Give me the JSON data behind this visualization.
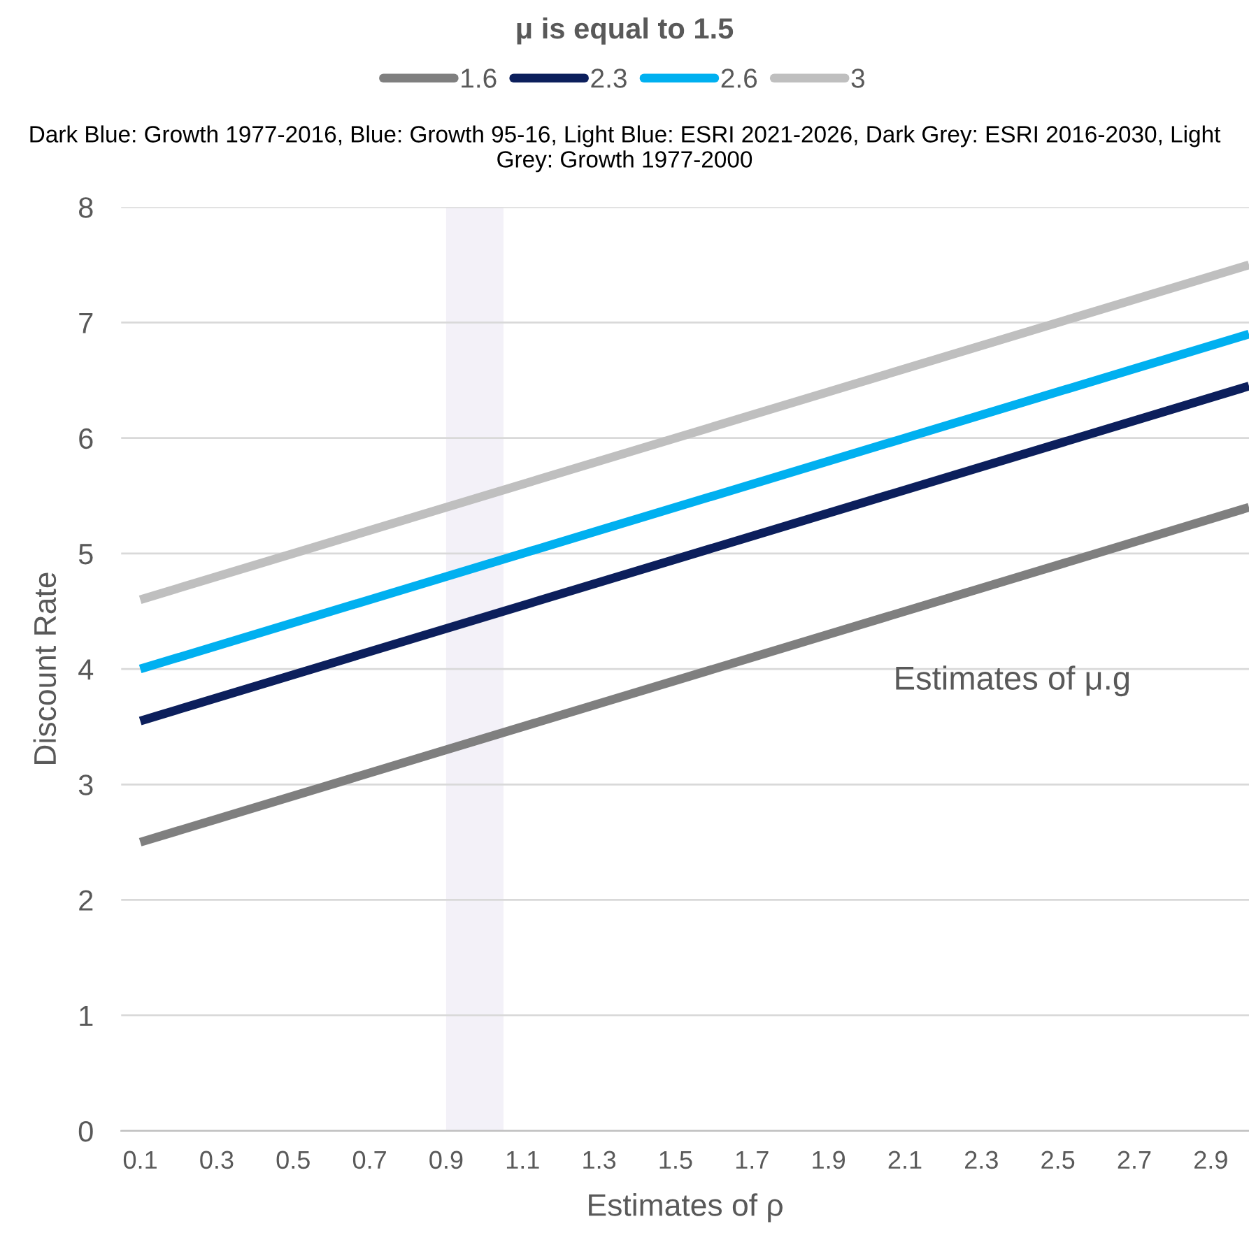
{
  "chart_data": {
    "type": "line",
    "title": "μ is equal to 1.5",
    "subtitle": "Dark Blue: Growth 1977-2016, Blue: Growth 95-16, Light Blue: ESRI 2021-2026, Dark Grey: ESRI 2016-2030, Light Grey: Growth 1977-2000",
    "xlabel": "Estimates of ρ",
    "ylabel": "Discount Rate",
    "annotations": [
      "Estimates of μ.g"
    ],
    "x": [
      0.1,
      3.0
    ],
    "series": [
      {
        "name": "1.6",
        "color": "#7f7f7f",
        "values": [
          2.5,
          5.4
        ]
      },
      {
        "name": "2.3",
        "color": "#0c1f5c",
        "values": [
          3.55,
          6.45
        ]
      },
      {
        "name": "2.6",
        "color": "#00b0f0",
        "values": [
          4.0,
          6.9
        ]
      },
      {
        "name": "3",
        "color": "#bfbfbf",
        "values": [
          4.6,
          7.5
        ]
      }
    ],
    "bands": [
      {
        "axis": "x",
        "from": 0.9,
        "to": 1.05,
        "color": "#f3f1f8"
      }
    ],
    "xlim": [
      0.05,
      3.0
    ],
    "xticks": [
      0.1,
      0.3,
      0.5,
      0.7,
      0.9,
      1.1,
      1.3,
      1.5,
      1.7,
      1.9,
      2.1,
      2.3,
      2.5,
      2.7,
      2.9
    ],
    "ylim": [
      0,
      8
    ],
    "yticks": [
      0,
      1,
      2,
      3,
      4,
      5,
      6,
      7,
      8
    ],
    "grid": "y",
    "legend": "top",
    "marker": "none",
    "line_style": "solid"
  }
}
